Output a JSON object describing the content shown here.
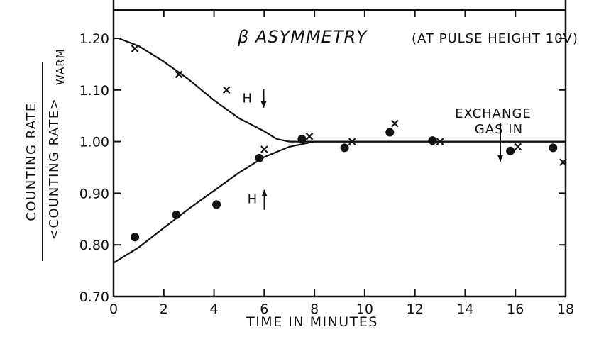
{
  "chart_data": {
    "type": "scatter",
    "title": "β ASYMMETRY",
    "note": "(AT PULSE HEIGHT 10V)",
    "xlabel": "TIME IN MINUTES",
    "ylabel": {
      "numerator": "COUNTING RATE",
      "denominator": "<COUNTING RATE>",
      "subscript": "WARM"
    },
    "xlim": [
      0,
      18
    ],
    "ylim": [
      0.7,
      1.25
    ],
    "x_ticks": [
      0,
      2,
      4,
      6,
      8,
      10,
      12,
      14,
      16,
      18
    ],
    "x_tick_labels": [
      "0",
      "2",
      "4",
      "6",
      "8",
      "10",
      "12",
      "14",
      "16",
      "18"
    ],
    "y_ticks": [
      0.7,
      0.8,
      0.9,
      1.0,
      1.1,
      1.2
    ],
    "y_tick_labels": [
      "0.70",
      "0.80",
      "0.90",
      "1.00",
      "1.10",
      "1.20"
    ],
    "grid": false,
    "series": [
      {
        "marker": "x",
        "points": [
          [
            0.85,
            1.18
          ],
          [
            2.6,
            1.13
          ],
          [
            4.5,
            1.1
          ],
          [
            6.0,
            0.985
          ],
          [
            7.8,
            1.01
          ],
          [
            9.5,
            1.0
          ],
          [
            11.2,
            1.035
          ],
          [
            13.0,
            1.0
          ],
          [
            16.1,
            0.99
          ],
          [
            17.9,
            0.96
          ]
        ]
      },
      {
        "marker": "dot",
        "points": [
          [
            0.85,
            0.815
          ],
          [
            2.5,
            0.858
          ],
          [
            4.1,
            0.878
          ],
          [
            5.8,
            0.968
          ],
          [
            7.5,
            1.005
          ],
          [
            9.2,
            0.988
          ],
          [
            11.0,
            1.018
          ],
          [
            12.7,
            1.002
          ],
          [
            15.8,
            0.982
          ],
          [
            17.5,
            0.988
          ]
        ]
      }
    ],
    "curves": [
      {
        "points": [
          [
            0.2,
            1.2
          ],
          [
            1.0,
            1.185
          ],
          [
            2.0,
            1.155
          ],
          [
            3.0,
            1.12
          ],
          [
            4.0,
            1.08
          ],
          [
            5.0,
            1.045
          ],
          [
            6.0,
            1.02
          ],
          [
            6.5,
            1.005
          ],
          [
            7.0,
            1.0
          ],
          [
            8.0,
            1.0
          ],
          [
            10.0,
            1.0
          ],
          [
            12.0,
            1.0
          ],
          [
            14.0,
            1.0
          ],
          [
            16.0,
            1.0
          ],
          [
            18.0,
            1.0
          ]
        ]
      },
      {
        "points": [
          [
            0.0,
            0.765
          ],
          [
            1.0,
            0.795
          ],
          [
            2.0,
            0.833
          ],
          [
            3.0,
            0.87
          ],
          [
            4.0,
            0.905
          ],
          [
            5.0,
            0.94
          ],
          [
            6.0,
            0.97
          ],
          [
            7.0,
            0.99
          ],
          [
            8.0,
            1.0
          ],
          [
            10.0,
            1.0
          ],
          [
            12.0,
            1.0
          ],
          [
            14.0,
            1.0
          ],
          [
            16.0,
            1.0
          ],
          [
            18.0,
            1.0
          ]
        ]
      }
    ],
    "annotations": [
      {
        "id": "h-down",
        "text": "H",
        "arrow": "down",
        "x": 5.75,
        "y": 1.085
      },
      {
        "id": "h-up",
        "text": "H",
        "arrow": "up",
        "x": 5.95,
        "y": 0.89
      },
      {
        "id": "exchange-gas",
        "lines": [
          "EXCHANGE",
          "GAS IN"
        ],
        "arrow": "down",
        "x": 15.4,
        "y": 1.03
      }
    ]
  }
}
